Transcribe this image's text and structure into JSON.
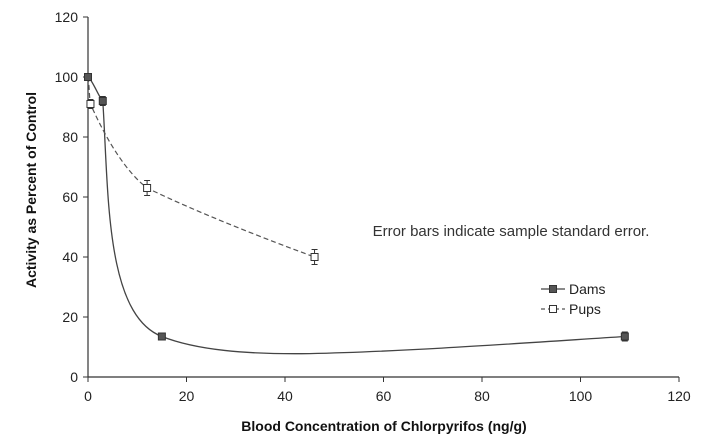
{
  "chart_data": {
    "type": "line",
    "xlabel": "Blood Concentration of Chlorpyrifos (ng/g)",
    "ylabel": "Activity as Percent of Control",
    "xlim": [
      0,
      120
    ],
    "ylim": [
      0,
      120
    ],
    "xticks": [
      0,
      20,
      40,
      60,
      80,
      100,
      120
    ],
    "yticks": [
      0,
      20,
      40,
      60,
      80,
      100,
      120
    ],
    "grid": false,
    "legend_position": "top-right",
    "annotation": "Error bars indicate sample standard error.",
    "series": [
      {
        "name": "Dams",
        "line_style": "solid",
        "marker": "filled-square",
        "color": "#555555",
        "x": [
          0,
          3,
          15,
          109
        ],
        "y": [
          100,
          92,
          13.5,
          13.5
        ],
        "err": [
          1,
          1.5,
          1,
          1.5
        ]
      },
      {
        "name": "Pups",
        "line_style": "dashed",
        "marker": "open-square",
        "color": "#555555",
        "x": [
          0,
          0.5,
          12,
          46
        ],
        "y": [
          100,
          91,
          63,
          40
        ],
        "err": [
          1,
          1.5,
          2.5,
          2.5
        ]
      }
    ]
  }
}
